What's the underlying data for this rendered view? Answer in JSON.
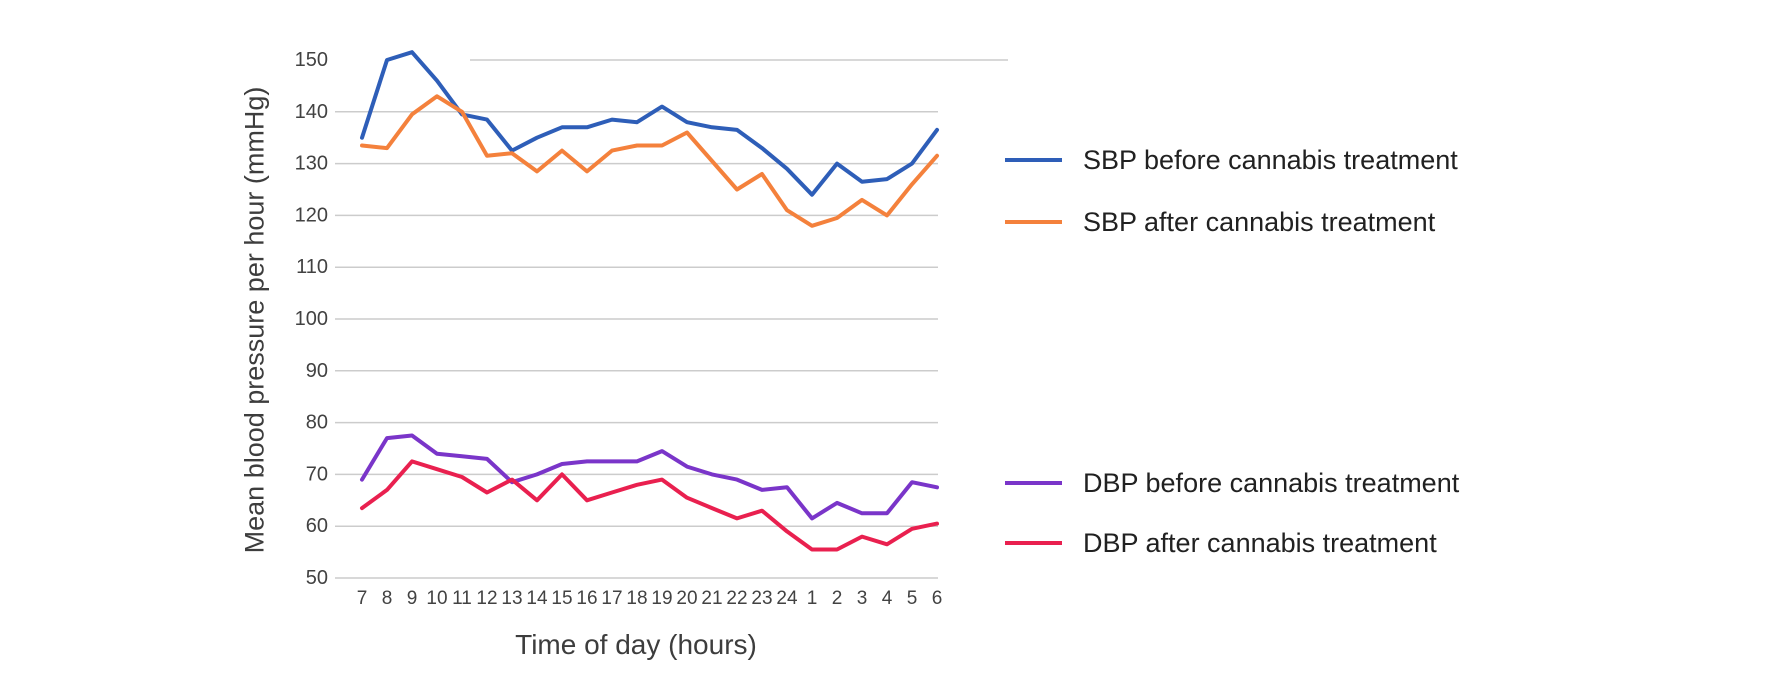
{
  "page": {
    "background": "#ffffff"
  },
  "chart_data": {
    "type": "line",
    "title": "",
    "xlabel": "Time of day (hours)",
    "ylabel": "Mean blood pressure per hour (mmHg)",
    "x_categories": [
      "7",
      "8",
      "9",
      "10",
      "11",
      "12",
      "13",
      "14",
      "15",
      "16",
      "17",
      "18",
      "19",
      "20",
      "21",
      "22",
      "23",
      "24",
      "1",
      "2",
      "3",
      "4",
      "5",
      "6"
    ],
    "y_ticks": [
      50,
      60,
      70,
      80,
      90,
      100,
      110,
      120,
      130,
      140,
      150
    ],
    "ylim": [
      50,
      150
    ],
    "grid": "horizontal",
    "legend_position": "right",
    "grid_color": "#cccccc",
    "tick_color": "#424242",
    "text_color": "#212121",
    "series": [
      {
        "name": "SBP before cannabis treatment",
        "color": "#2E5EB8",
        "values": [
          135,
          150,
          151.5,
          146,
          139.5,
          138.5,
          132.5,
          135,
          137,
          137,
          138.5,
          138,
          141,
          138,
          137,
          136.5,
          133,
          129,
          124,
          130,
          126.5,
          127,
          130,
          136.5
        ]
      },
      {
        "name": "SBP after cannabis treatment",
        "color": "#F4813C",
        "values": [
          133.5,
          133,
          139.5,
          143,
          140,
          131.5,
          132,
          128.5,
          132.5,
          128.5,
          132.5,
          133.5,
          133.5,
          136,
          130.5,
          125,
          128,
          121,
          118,
          119.5,
          123,
          120,
          126,
          131.5
        ]
      },
      {
        "name": "DBP before cannabis treatment",
        "color": "#7A35C9",
        "values": [
          69,
          77,
          77.5,
          74,
          73.5,
          73,
          68.5,
          70,
          72,
          72.5,
          72.5,
          72.5,
          74.5,
          71.5,
          70,
          69,
          67,
          67.5,
          61.5,
          64.5,
          62.5,
          62.5,
          68.5,
          67.5
        ]
      },
      {
        "name": "DBP after cannabis treatment",
        "color": "#E9204F",
        "values": [
          63.5,
          67,
          72.5,
          71,
          69.5,
          66.5,
          69,
          65,
          70,
          65,
          66.5,
          68,
          69,
          65.5,
          63.5,
          61.5,
          63,
          59,
          55.5,
          55.5,
          58,
          56.5,
          59.5,
          60.5
        ]
      }
    ]
  }
}
